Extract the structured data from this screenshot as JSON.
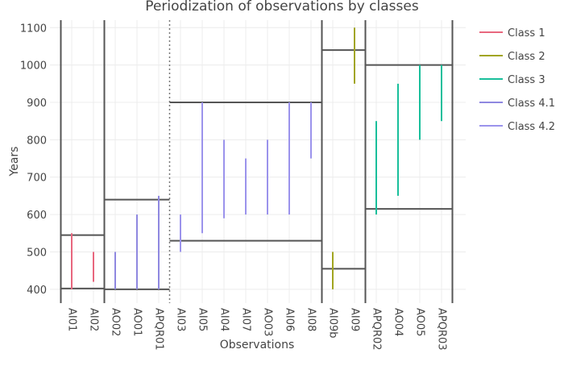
{
  "chart_data": {
    "type": "line",
    "title": "Periodization of observations by classes",
    "xlabel": "Observations",
    "ylabel": "Years",
    "ylim": [
      363,
      1120
    ],
    "yticks": [
      400,
      500,
      600,
      700,
      800,
      900,
      1000,
      1100
    ],
    "grid": true,
    "legend_position": "right",
    "categories": [
      "AI01",
      "AI02",
      "AO02",
      "AO01",
      "APQR01",
      "AI03",
      "AI05",
      "AI04",
      "AI07",
      "AO03",
      "AI06",
      "AI08",
      "AI09b",
      "AI09",
      "APQR02",
      "AO04",
      "AO05",
      "APQR03"
    ],
    "series": [
      {
        "name": "Class 1",
        "color": "#e8677e",
        "ranges": [
          {
            "category": "AI01",
            "start": 400,
            "end": 550
          },
          {
            "category": "AI02",
            "start": 420,
            "end": 500
          }
        ]
      },
      {
        "name": "Class 2",
        "color": "#a1a520",
        "ranges": [
          {
            "category": "AI09b",
            "start": 400,
            "end": 500
          },
          {
            "category": "AI09",
            "start": 950,
            "end": 1100
          }
        ]
      },
      {
        "name": "Class 3",
        "color": "#19bf9b",
        "ranges": [
          {
            "category": "APQR02",
            "start": 600,
            "end": 850
          },
          {
            "category": "AO04",
            "start": 650,
            "end": 950
          },
          {
            "category": "AO05",
            "start": 800,
            "end": 1000
          },
          {
            "category": "APQR03",
            "start": 850,
            "end": 1000
          }
        ]
      },
      {
        "name": "Class 4.1",
        "color": "#8f88e0",
        "ranges": [
          {
            "category": "AO02",
            "start": 400,
            "end": 500
          },
          {
            "category": "AO01",
            "start": 400,
            "end": 600
          },
          {
            "category": "APQR01",
            "start": 400,
            "end": 650
          }
        ]
      },
      {
        "name": "Class 4.2",
        "color": "#9b93ec",
        "ranges": [
          {
            "category": "AI03",
            "start": 500,
            "end": 600
          },
          {
            "category": "AI05",
            "start": 550,
            "end": 900
          },
          {
            "category": "AI04",
            "start": 590,
            "end": 800
          },
          {
            "category": "AI07",
            "start": 600,
            "end": 750
          },
          {
            "category": "AO03",
            "start": 600,
            "end": 800
          },
          {
            "category": "AI06",
            "start": 600,
            "end": 900
          },
          {
            "category": "AI08",
            "start": 750,
            "end": 900
          }
        ]
      }
    ],
    "class_boxes": [
      {
        "from": "AI01",
        "to": "AI02",
        "start": 402,
        "end": 545
      },
      {
        "from": "AO02",
        "to": "APQR01",
        "start": 400,
        "end": 640
      },
      {
        "from": "AI03",
        "to": "AI08",
        "start": 530,
        "end": 900
      },
      {
        "from": "AI09b",
        "to": "AI09",
        "start": 455,
        "end": 1040
      },
      {
        "from": "APQR02",
        "to": "APQR03",
        "start": 615,
        "end": 1000
      }
    ],
    "class_separators_between": [
      [
        "AI02",
        "AO02"
      ],
      [
        "AI08",
        "AI09b"
      ],
      [
        "AI09",
        "APQR02"
      ]
    ],
    "dotted_separators_between": [
      [
        "APQR01",
        "AI03"
      ]
    ]
  }
}
